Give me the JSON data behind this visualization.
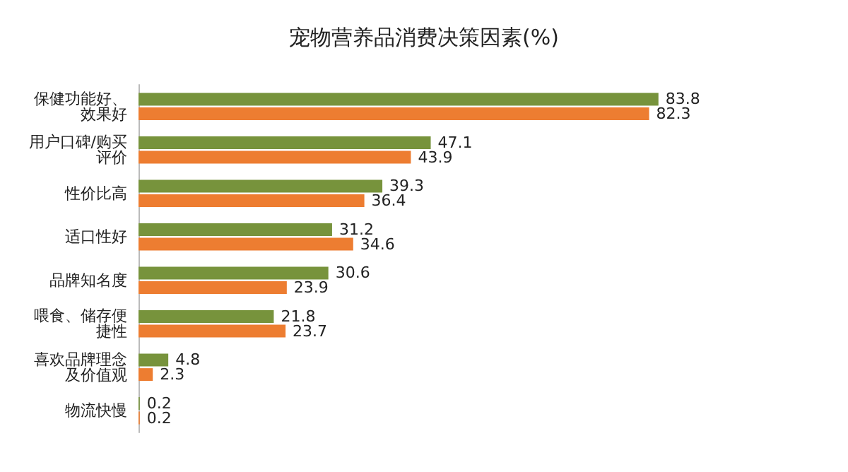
{
  "chart_data": {
    "type": "bar",
    "orientation": "horizontal",
    "title": "宠物营养品消费决策因素(%)",
    "categories": [
      "保健功能好、效果好",
      "用户口碑/购买评价",
      "性价比高",
      "适口性好",
      "品牌知名度",
      "喂食、储存便捷性",
      "喜欢品牌理念及价值观",
      "物流快慢"
    ],
    "series": [
      {
        "color": "#77933c",
        "values": [
          83.8,
          47.1,
          39.3,
          31.2,
          30.6,
          21.8,
          4.8,
          0.2
        ]
      },
      {
        "color": "#ed7d31",
        "values": [
          82.3,
          43.9,
          36.4,
          34.6,
          23.9,
          23.7,
          2.3,
          0.2
        ]
      }
    ],
    "data_labels": true
  }
}
